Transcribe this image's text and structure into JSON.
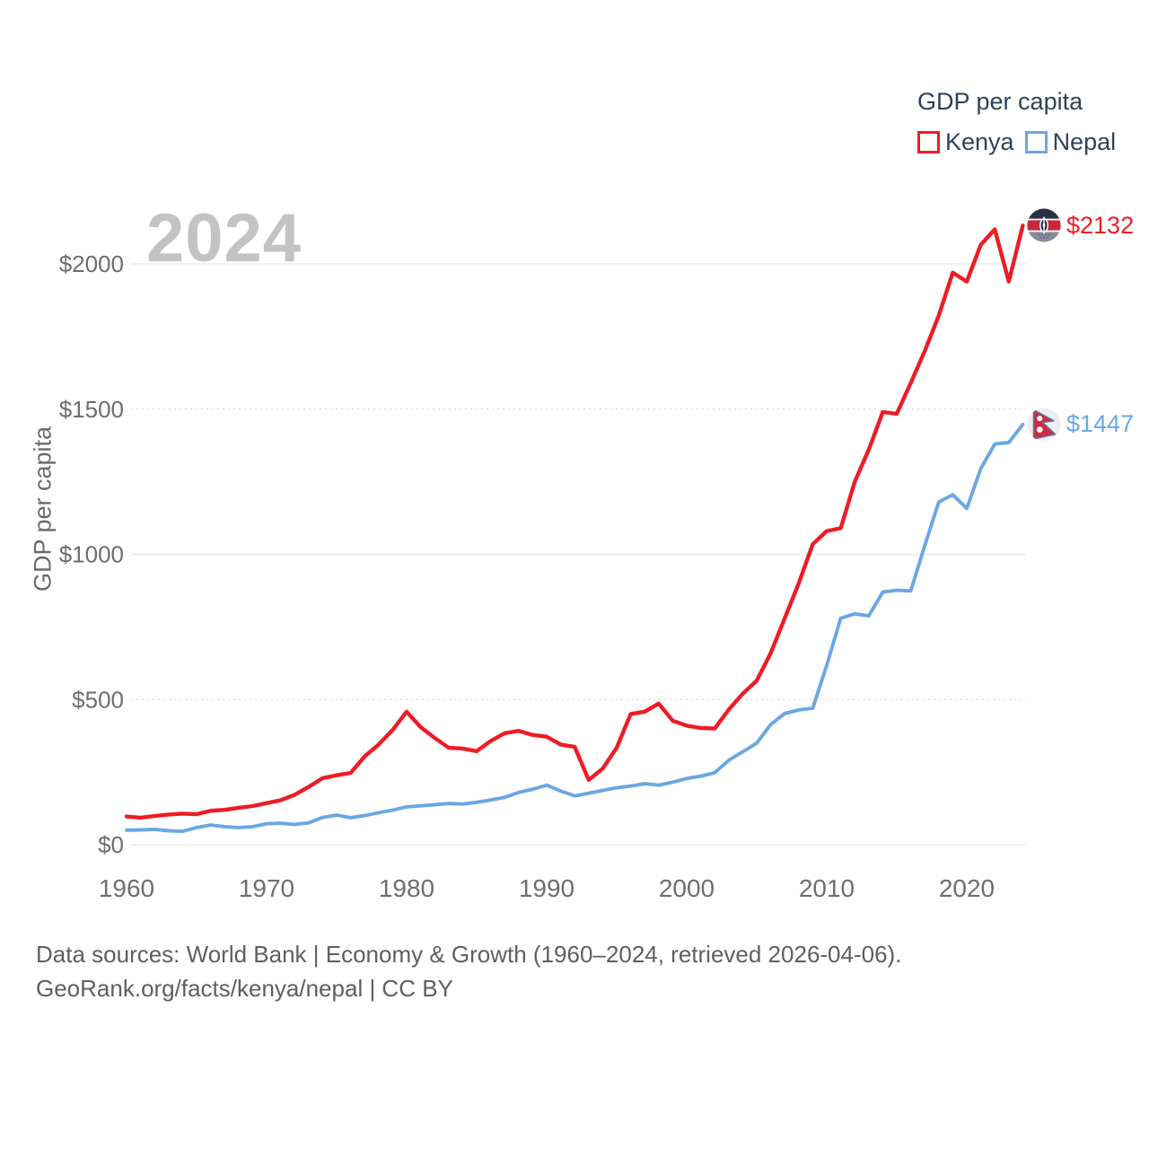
{
  "legend": {
    "title": "GDP per capita",
    "items": [
      {
        "label": "Kenya",
        "color": "#ee1c25"
      },
      {
        "label": "Nepal",
        "color": "#6aa7e4"
      }
    ]
  },
  "watermark": "2024",
  "footer": {
    "line1": "Data sources: World Bank | Economy & Growth (1960–2024, retrieved 2026-04-06).",
    "line2": "GeoRank.org/facts/kenya/nepal | CC BY"
  },
  "chart_data": {
    "type": "line",
    "title": "GDP per capita",
    "xlabel": "",
    "ylabel": "GDP per capita",
    "grid": "horizontal",
    "legend_position": "top-right",
    "xlim": [
      1959.7,
      2025.6
    ],
    "ylim": [
      0,
      2250
    ],
    "x_ticks": [
      1960,
      1970,
      1980,
      1990,
      2000,
      2010,
      2020
    ],
    "y_ticks": [
      {
        "value": 0,
        "label": "$0"
      },
      {
        "value": 500,
        "label": "$500"
      },
      {
        "value": 1000,
        "label": "$1000"
      },
      {
        "value": 1500,
        "label": "$1500"
      },
      {
        "value": 2000,
        "label": "$2000"
      }
    ],
    "years": [
      1960,
      1961,
      1962,
      1963,
      1964,
      1965,
      1966,
      1967,
      1968,
      1969,
      1970,
      1971,
      1972,
      1973,
      1974,
      1975,
      1976,
      1977,
      1978,
      1979,
      1980,
      1981,
      1982,
      1983,
      1984,
      1985,
      1986,
      1987,
      1988,
      1989,
      1990,
      1991,
      1992,
      1993,
      1994,
      1995,
      1996,
      1997,
      1998,
      1999,
      2000,
      2001,
      2002,
      2003,
      2004,
      2005,
      2006,
      2007,
      2008,
      2009,
      2010,
      2011,
      2012,
      2013,
      2014,
      2015,
      2016,
      2017,
      2018,
      2019,
      2020,
      2021,
      2022,
      2023,
      2024
    ],
    "series": [
      {
        "name": "Kenya",
        "color": "#ee1c25",
        "end_label": "$2132",
        "end_value": 2132,
        "flag": "kenya",
        "values": [
          97,
          93,
          99,
          104,
          107,
          105,
          117,
          120,
          127,
          133,
          143,
          153,
          172,
          199,
          229,
          239,
          247,
          304,
          345,
          395,
          458,
          405,
          368,
          334,
          331,
          322,
          357,
          384,
          392,
          378,
          372,
          345,
          337,
          223,
          262,
          334,
          450,
          458,
          486,
          427,
          410,
          402,
          400,
          465,
          520,
          565,
          660,
          780,
          900,
          1035,
          1080,
          1090,
          1250,
          1360,
          1490,
          1484,
          1590,
          1700,
          1822,
          1970,
          1939,
          2066,
          2119,
          1939,
          2132
        ]
      },
      {
        "name": "Nepal",
        "color": "#6aa7e4",
        "end_label": "$1447",
        "end_value": 1447,
        "flag": "nepal",
        "values": [
          50,
          51,
          53,
          48,
          46,
          59,
          68,
          62,
          59,
          62,
          72,
          74,
          70,
          75,
          94,
          102,
          93,
          100,
          110,
          119,
          130,
          134,
          138,
          142,
          140,
          146,
          154,
          163,
          180,
          191,
          205,
          185,
          168,
          177,
          187,
          196,
          202,
          210,
          205,
          215,
          228,
          236,
          248,
          291,
          320,
          350,
          414,
          452,
          464,
          470,
          618,
          780,
          795,
          788,
          870,
          876,
          874,
          1030,
          1180,
          1205,
          1158,
          1295,
          1380,
          1385,
          1447
        ]
      }
    ]
  }
}
